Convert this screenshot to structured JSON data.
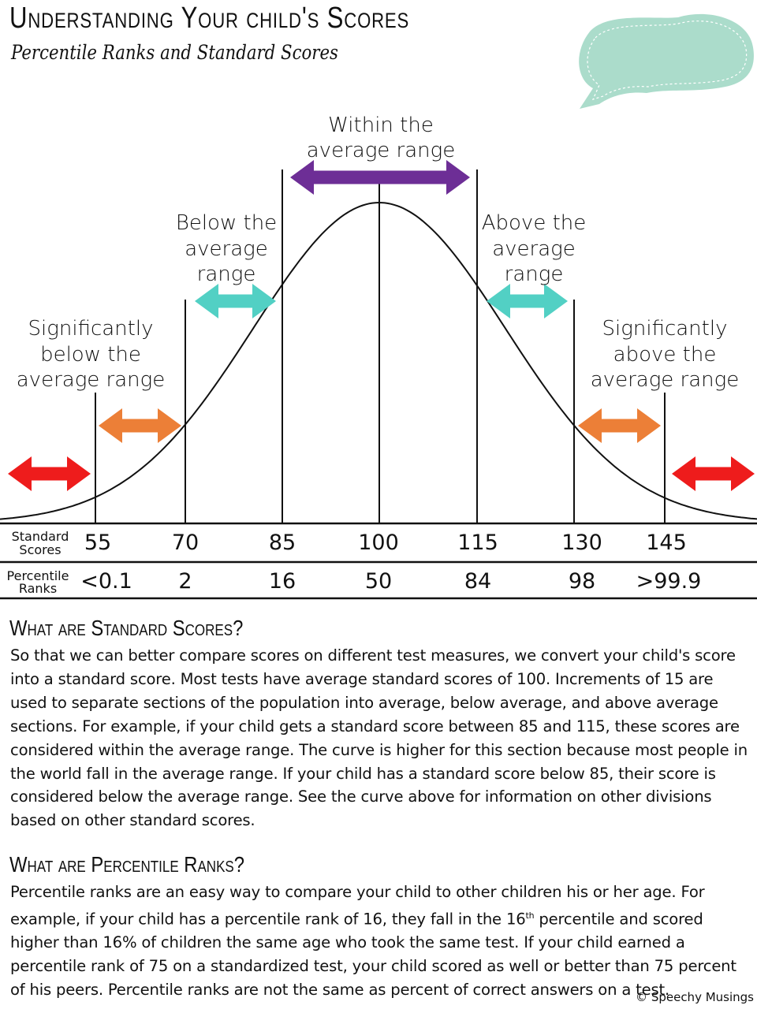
{
  "header": {
    "title": "Understanding Your child's Scores",
    "subtitle": "Percentile Ranks and Standard Scores"
  },
  "colors": {
    "red": "#ee1c1c",
    "orange": "#ec7f37",
    "teal": "#52d0c4",
    "purple": "#6d2e96",
    "bubble": "#abdccb"
  },
  "chart_data": {
    "type": "diagram",
    "curve": "normal distribution",
    "range_labels": {
      "within": [
        "Within the",
        "average range"
      ],
      "below": [
        "Below the",
        "average",
        "range"
      ],
      "above": [
        "Above the",
        "average",
        "range"
      ],
      "sig_below": [
        "Significantly",
        "below the",
        "average range"
      ],
      "sig_above": [
        "Significantly",
        "above the",
        "average range"
      ]
    },
    "standard_scores_label": [
      "Standard",
      "Scores"
    ],
    "percentile_ranks_label": [
      "Percentile",
      "Ranks"
    ],
    "standard_scores": [
      "55",
      "70",
      "85",
      "100",
      "115",
      "130",
      "145"
    ],
    "percentile_ranks": [
      "<0.1",
      "2",
      "16",
      "50",
      "84",
      "98",
      ">99.9"
    ]
  },
  "sections": [
    {
      "heading": "What are Standard Scores?",
      "body": "So that we can better compare scores on different test measures, we convert your child's score into a standard score. Most tests have average standard scores of 100. Increments of 15 are used to separate sections of the population into average, below average, and above average sections. For example, if your child gets a standard score between 85 and 115, these scores are considered within the average range. The curve is higher for this section because most people in the world fall in the average range. If your child has a standard score below 85, their score is considered below the average range. See the curve above for information on other divisions based on other standard scores."
    },
    {
      "heading": "What are Percentile Ranks?",
      "body_a": "Percentile ranks are an easy way to compare your child to other children his or her age. For example, if your child has a percentile rank of 16, they fall in the 16",
      "sup": "th",
      "body_b": " percentile and scored higher than 16% of children the same age who took the same test. If your child earned a percentile rank of 75 on a standardized test, your child scored as well or better than 75 percent of his peers. Percentile ranks are not the same as percent of correct answers on a test."
    }
  ],
  "copyright": "© Speechy Musings"
}
